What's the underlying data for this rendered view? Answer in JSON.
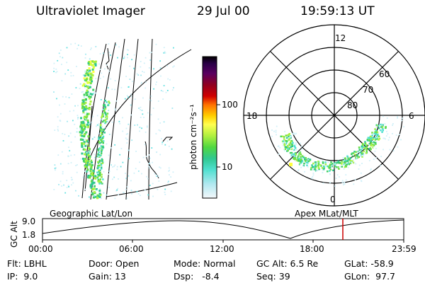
{
  "header": {
    "instrument": "Ultraviolet Imager",
    "date": "29 Jul 00",
    "time": "19:59:13 UT"
  },
  "colorbar": {
    "unit_label": "photon cm⁻²s⁻¹",
    "ticks": [
      "100",
      "10"
    ],
    "colors": [
      "#000000",
      "#1a0030",
      "#3a0058",
      "#52006a",
      "#700050",
      "#8a0030",
      "#a80010",
      "#cc0000",
      "#e84000",
      "#ff8800",
      "#ffc000",
      "#ffff40",
      "#d8ff40",
      "#a8f040",
      "#70e040",
      "#40d060",
      "#30c890",
      "#40d8c0",
      "#60e0e0",
      "#a0e8f0",
      "#d0f0f8",
      "#ffffff"
    ]
  },
  "polar": {
    "mlt_labels": {
      "top": "12",
      "left": "18",
      "right": "6",
      "bottom": "0"
    },
    "lat_labels": [
      "60",
      "70",
      "80"
    ]
  },
  "timeline": {
    "left_title": "Geographic Lat/Lon",
    "right_title": "Apex MLat/MLT",
    "y_axis_label": "GC Alt",
    "y_ticks": [
      "9.0",
      "1.8"
    ],
    "x_ticks": [
      "00:00",
      "06:00",
      "12:00",
      "18:00",
      "23:59"
    ],
    "marker_color": "#cc0000"
  },
  "info": {
    "flt_label": "Flt:",
    "flt_value": "LBHL",
    "ip_label": "IP:",
    "ip_value": "9.0",
    "door_label": "Door:",
    "door_value": "Open",
    "gain_label": "Gain:",
    "gain_value": "13",
    "mode_label": "Mode:",
    "mode_value": "Normal",
    "dsp_label": "Dsp:",
    "dsp_value": "-8.4",
    "gcalt_label": "GC Alt:",
    "gcalt_value": "6.5 Re",
    "seq_label": "Seq:",
    "seq_value": "39",
    "glat_label": "GLat:",
    "glat_value": "-58.9",
    "glon_label": "GLon:",
    "glon_value": "97.7"
  }
}
